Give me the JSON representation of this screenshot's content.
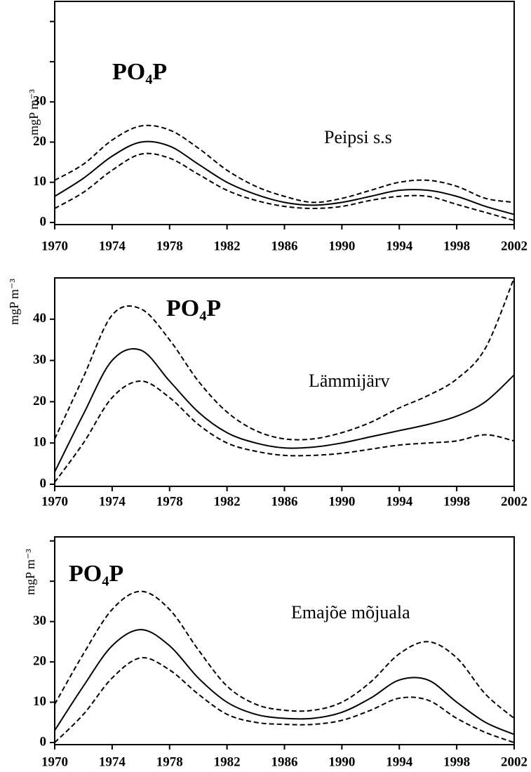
{
  "chart_data": [
    {
      "type": "line",
      "title": "PO₄P",
      "annotation": "Peipsi s.s",
      "y_label": "mgP m⁻³",
      "x": [
        1970,
        1972,
        1974,
        1976,
        1978,
        1980,
        1982,
        1984,
        1986,
        1988,
        1990,
        1992,
        1994,
        1996,
        1998,
        2000,
        2002
      ],
      "series": [
        {
          "name": "fit",
          "color": "#000000",
          "style": "solid",
          "values": [
            6.5,
            11,
            16.5,
            20,
            19,
            14.5,
            10,
            7,
            5,
            4.3,
            5,
            6.5,
            8,
            8,
            6.5,
            4,
            2
          ]
        },
        {
          "name": "upper",
          "color": "#000000",
          "style": "dashed",
          "values": [
            10.5,
            14.5,
            20.5,
            24,
            23,
            18.5,
            13,
            9,
            6.5,
            5,
            6,
            8,
            10,
            10.5,
            9,
            6,
            5
          ]
        },
        {
          "name": "lower",
          "color": "#000000",
          "style": "dashed",
          "values": [
            3.5,
            7.5,
            13,
            17,
            16,
            12,
            8,
            5.5,
            4,
            3.5,
            4,
            5.5,
            6.5,
            6.5,
            4.5,
            2.5,
            0.5
          ]
        }
      ],
      "xlim": [
        1970,
        2002
      ],
      "xticks": [
        1970,
        1974,
        1978,
        1982,
        1986,
        1990,
        1994,
        1998,
        2002
      ],
      "ylim": [
        0,
        55
      ],
      "yticks": [
        0,
        10,
        20,
        30
      ],
      "yminor": [
        40,
        50
      ]
    },
    {
      "type": "line",
      "title": "PO₄P",
      "annotation": "Lämmijärv",
      "y_label": "mgP m⁻³",
      "x": [
        1970,
        1972,
        1974,
        1976,
        1978,
        1980,
        1982,
        1984,
        1986,
        1988,
        1990,
        1992,
        1994,
        1996,
        1998,
        2000,
        2002
      ],
      "series": [
        {
          "name": "fit",
          "color": "#000000",
          "style": "solid",
          "values": [
            3,
            17,
            30,
            32.5,
            25,
            17.5,
            12.5,
            10,
            8.8,
            9,
            10,
            11.5,
            13,
            14.5,
            16.5,
            20,
            26.5
          ]
        },
        {
          "name": "upper",
          "color": "#000000",
          "style": "dashed",
          "values": [
            11,
            26,
            41,
            42.5,
            35,
            25,
            17.5,
            13,
            11,
            11,
            12.5,
            15,
            18.5,
            21.5,
            25.5,
            33,
            50
          ]
        },
        {
          "name": "lower",
          "color": "#000000",
          "style": "dashed",
          "values": [
            0.5,
            10,
            21,
            25,
            21,
            14.5,
            10,
            8,
            7,
            7,
            7.5,
            8.5,
            9.5,
            10,
            10.5,
            12,
            10.5
          ]
        }
      ],
      "xlim": [
        1970,
        2002
      ],
      "xticks": [
        1970,
        1974,
        1978,
        1982,
        1986,
        1990,
        1994,
        1998,
        2002
      ],
      "ylim": [
        0,
        50
      ],
      "yticks": [
        0,
        10,
        20,
        30,
        40
      ],
      "yminor": []
    },
    {
      "type": "line",
      "title": "PO₄P",
      "annotation": "Emajõe mõjuala",
      "y_label": "mgP m⁻³",
      "x": [
        1970,
        1972,
        1974,
        1976,
        1978,
        1980,
        1982,
        1984,
        1986,
        1988,
        1990,
        1992,
        1994,
        1996,
        1998,
        2000,
        2002
      ],
      "series": [
        {
          "name": "fit",
          "color": "#000000",
          "style": "solid",
          "values": [
            3,
            14,
            24,
            28,
            24,
            16,
            10,
            7,
            6,
            6,
            7.5,
            11,
            15.5,
            15.5,
            10,
            5,
            2
          ]
        },
        {
          "name": "upper",
          "color": "#000000",
          "style": "dashed",
          "values": [
            9.5,
            22,
            33,
            37.5,
            33,
            23,
            14,
            9.5,
            8,
            8,
            10,
            15,
            22,
            25,
            21,
            12,
            6
          ]
        },
        {
          "name": "lower",
          "color": "#000000",
          "style": "dashed",
          "values": [
            0,
            7,
            16,
            21,
            18,
            12,
            7,
            5,
            4.5,
            4.5,
            5.5,
            8,
            11,
            10.5,
            6,
            2.5,
            0
          ]
        }
      ],
      "xlim": [
        1970,
        2002
      ],
      "xticks": [
        1970,
        1974,
        1978,
        1982,
        1986,
        1990,
        1994,
        1998,
        2002
      ],
      "ylim": [
        0,
        51
      ],
      "yticks": [
        0,
        10,
        20,
        30
      ],
      "yminor": [
        40,
        50
      ]
    }
  ]
}
